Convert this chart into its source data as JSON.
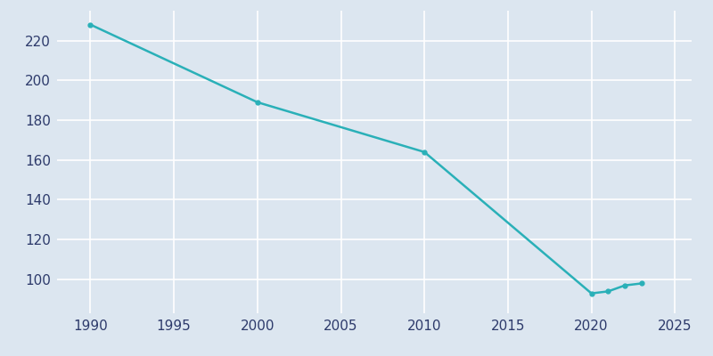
{
  "years": [
    1990,
    2000,
    2010,
    2020,
    2021,
    2022,
    2023
  ],
  "population": [
    228,
    189,
    164,
    93,
    94,
    97,
    98
  ],
  "line_color": "#2ab0b8",
  "marker": "o",
  "marker_size": 3.5,
  "line_width": 1.8,
  "plot_bg_color": "#dce6f0",
  "fig_bg_color": "#dce6f0",
  "grid_color": "#ffffff",
  "xlim": [
    1988,
    2026
  ],
  "ylim": [
    83,
    235
  ],
  "xticks": [
    1990,
    1995,
    2000,
    2005,
    2010,
    2015,
    2020,
    2025
  ],
  "yticks": [
    100,
    120,
    140,
    160,
    180,
    200,
    220
  ],
  "tick_label_color": "#2d3a6b",
  "tick_fontsize": 11
}
